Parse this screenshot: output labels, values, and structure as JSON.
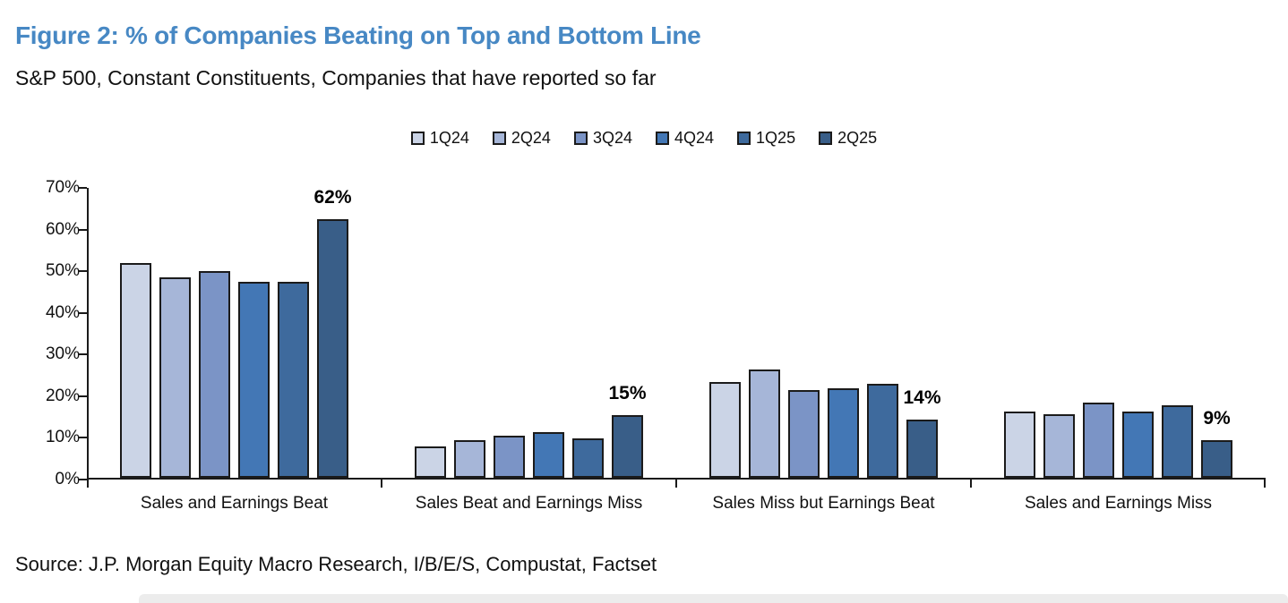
{
  "header": {
    "title": "Figure 2: % of Companies Beating on Top and Bottom Line",
    "subtitle": "S&P 500, Constant Constituents, Companies that have reported so far"
  },
  "source": "Source: J.P. Morgan Equity Macro Research, I/B/E/S, Compustat, Factset",
  "colors": {
    "title_text": "#4788c4",
    "body_text": "#111111",
    "axis": "#1a1a1a",
    "bar_border": "#1b1b1b",
    "bottom_strip": "#ececec"
  },
  "chart_data": {
    "type": "bar",
    "title": "Figure 2: % of Companies Beating on Top and Bottom Line",
    "subtitle": "S&P 500, Constant Constituents, Companies that have reported so far",
    "categories": [
      "Sales and Earnings Beat",
      "Sales Beat and Earnings Miss",
      "Sales Miss but Earnings Beat",
      "Sales and Earnings Miss"
    ],
    "series": [
      {
        "name": "1Q24",
        "color": "#cbd4e6",
        "values": [
          51.5,
          7.5,
          23,
          16
        ]
      },
      {
        "name": "2Q24",
        "color": "#a6b6d8",
        "values": [
          48,
          9,
          26,
          15.3
        ]
      },
      {
        "name": "3Q24",
        "color": "#7b94c6",
        "values": [
          49.5,
          10,
          21,
          18
        ]
      },
      {
        "name": "4Q24",
        "color": "#4377b5",
        "values": [
          47,
          11,
          21.5,
          16
        ]
      },
      {
        "name": "1Q25",
        "color": "#3e6a9d",
        "values": [
          47,
          9.5,
          22.5,
          17.5
        ]
      },
      {
        "name": "2Q25",
        "color": "#395e88",
        "values": [
          62,
          15,
          14,
          9
        ]
      }
    ],
    "data_labels": {
      "series": "2Q25",
      "values": [
        "62%",
        "15%",
        "14%",
        "9%"
      ]
    },
    "ylim": [
      0,
      70
    ],
    "yticks": [
      "0%",
      "10%",
      "20%",
      "30%",
      "40%",
      "50%",
      "60%",
      "70%"
    ],
    "legend_position": "top-center",
    "grid": false
  }
}
